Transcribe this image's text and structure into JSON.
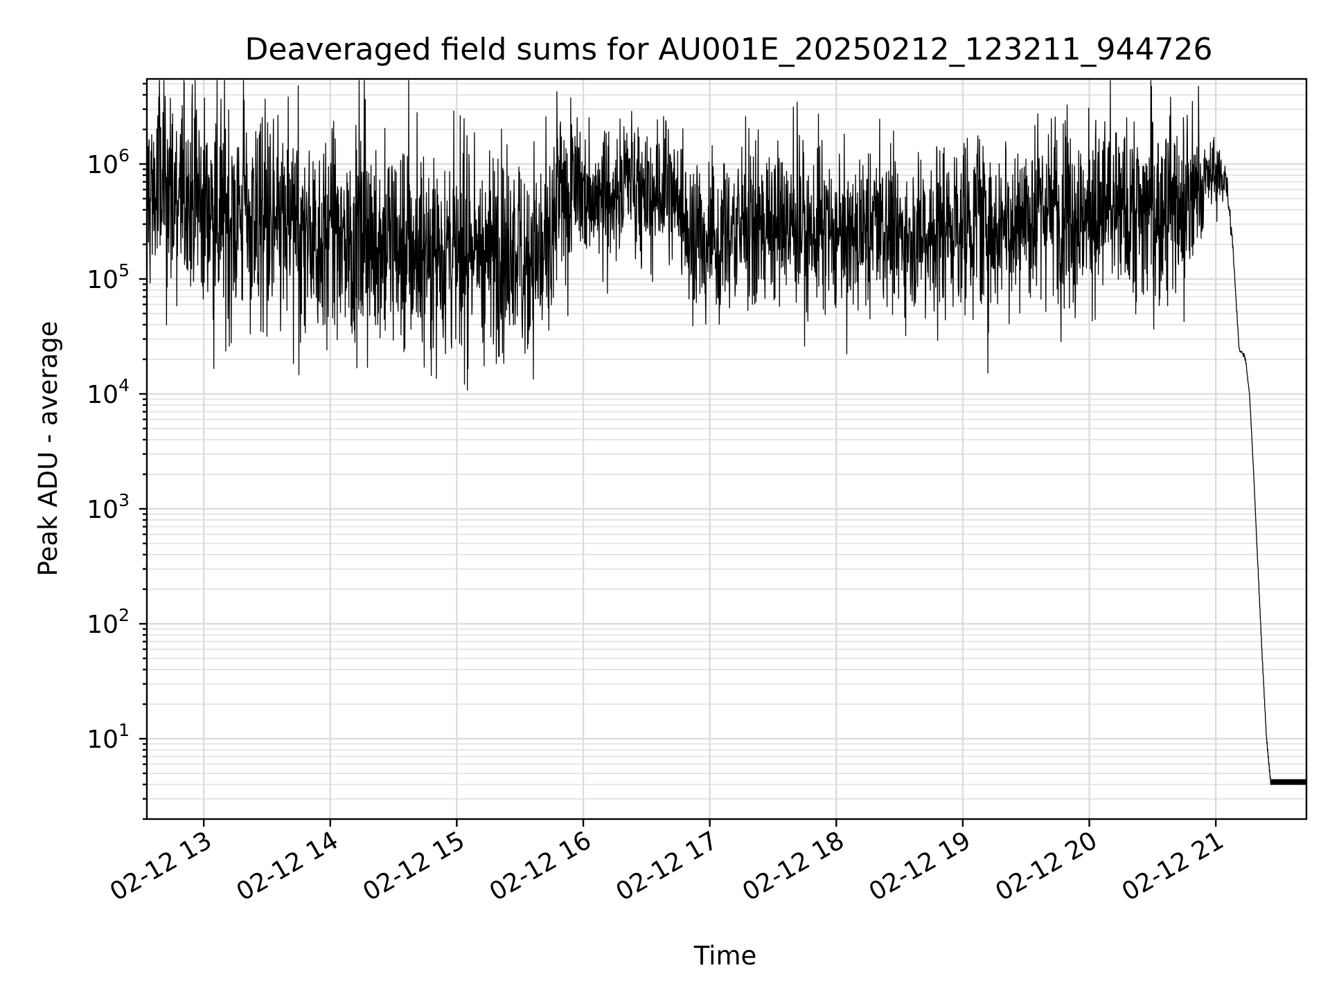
{
  "chart_data": {
    "type": "line",
    "title": "Deaveraged field sums for AU001E_20250212_123211_944726",
    "xlabel": "Time",
    "ylabel": "Peak ADU - average",
    "yscale": "log",
    "grid": true,
    "ylim": [
      2,
      5500000
    ],
    "xlim": [
      "02-12 12:33",
      "02-12 21:43"
    ],
    "x_ticks": [
      {
        "value": "02-12 13:00",
        "label": "02-12 13"
      },
      {
        "value": "02-12 14:00",
        "label": "02-12 14"
      },
      {
        "value": "02-12 15:00",
        "label": "02-12 15"
      },
      {
        "value": "02-12 16:00",
        "label": "02-12 16"
      },
      {
        "value": "02-12 17:00",
        "label": "02-12 17"
      },
      {
        "value": "02-12 18:00",
        "label": "02-12 18"
      },
      {
        "value": "02-12 19:00",
        "label": "02-12 19"
      },
      {
        "value": "02-12 20:00",
        "label": "02-12 20"
      },
      {
        "value": "02-12 21:00",
        "label": "02-12 21"
      }
    ],
    "y_ticks": [
      {
        "value": 10,
        "base": "10",
        "exp": "1"
      },
      {
        "value": 100,
        "base": "10",
        "exp": "2"
      },
      {
        "value": 1000,
        "base": "10",
        "exp": "3"
      },
      {
        "value": 10000,
        "base": "10",
        "exp": "4"
      },
      {
        "value": 100000,
        "base": "10",
        "exp": "5"
      },
      {
        "value": 1000000,
        "base": "10",
        "exp": "6"
      }
    ],
    "line_color": "#000000",
    "series": [
      {
        "x": [
          "02-12 12:33",
          "02-12 12:45",
          "02-12 13:00",
          "02-12 13:15",
          "02-12 13:30",
          "02-12 13:45",
          "02-12 14:00",
          "02-12 14:15",
          "02-12 14:30",
          "02-12 14:45",
          "02-12 15:00",
          "02-12 15:15",
          "02-12 15:30",
          "02-12 15:45",
          "02-12 15:48",
          "02-12 16:00",
          "02-12 16:15",
          "02-12 16:22",
          "02-12 16:30",
          "02-12 16:40",
          "02-12 16:45",
          "02-12 16:50",
          "02-12 17:00",
          "02-12 17:15",
          "02-12 17:30",
          "02-12 17:45",
          "02-12 18:00",
          "02-12 18:15",
          "02-12 18:30",
          "02-12 18:45",
          "02-12 19:00",
          "02-12 19:15",
          "02-12 19:30",
          "02-12 19:45",
          "02-12 20:00",
          "02-12 20:15",
          "02-12 20:30",
          "02-12 20:45",
          "02-12 20:55",
          "02-12 21:00",
          "02-12 21:05",
          "02-12 21:08",
          "02-12 21:11",
          "02-12 21:13",
          "02-12 21:14",
          "02-12 21:16",
          "02-12 21:18",
          "02-12 21:20",
          "02-12 21:22",
          "02-12 21:24",
          "02-12 21:26",
          "02-12 21:43"
        ],
        "y": [
          600000,
          550000,
          450000,
          380000,
          300000,
          260000,
          230000,
          210000,
          200000,
          190000,
          180000,
          175000,
          170000,
          160000,
          500000,
          550000,
          560000,
          900000,
          450000,
          600000,
          500000,
          250000,
          220000,
          280000,
          300000,
          260000,
          230000,
          240000,
          250000,
          270000,
          290000,
          320000,
          360000,
          380000,
          370000,
          390000,
          400000,
          420000,
          700000,
          900000,
          700000,
          200000,
          25000,
          22000,
          21000,
          10000,
          2000,
          300,
          50,
          10,
          4,
          4
        ],
        "spread": [
          0.9,
          0.9,
          0.85,
          0.85,
          0.85,
          0.8,
          0.8,
          0.8,
          0.8,
          0.8,
          0.8,
          0.8,
          0.8,
          0.8,
          0.55,
          0.55,
          0.55,
          0.45,
          0.5,
          0.55,
          0.55,
          0.6,
          0.6,
          0.6,
          0.6,
          0.6,
          0.6,
          0.6,
          0.6,
          0.65,
          0.7,
          0.7,
          0.7,
          0.7,
          0.7,
          0.75,
          0.75,
          0.75,
          0.35,
          0.25,
          0.2,
          0.05,
          0.02,
          0.02,
          0.02,
          0.01,
          0,
          0,
          0,
          0,
          0,
          0
        ]
      }
    ]
  }
}
